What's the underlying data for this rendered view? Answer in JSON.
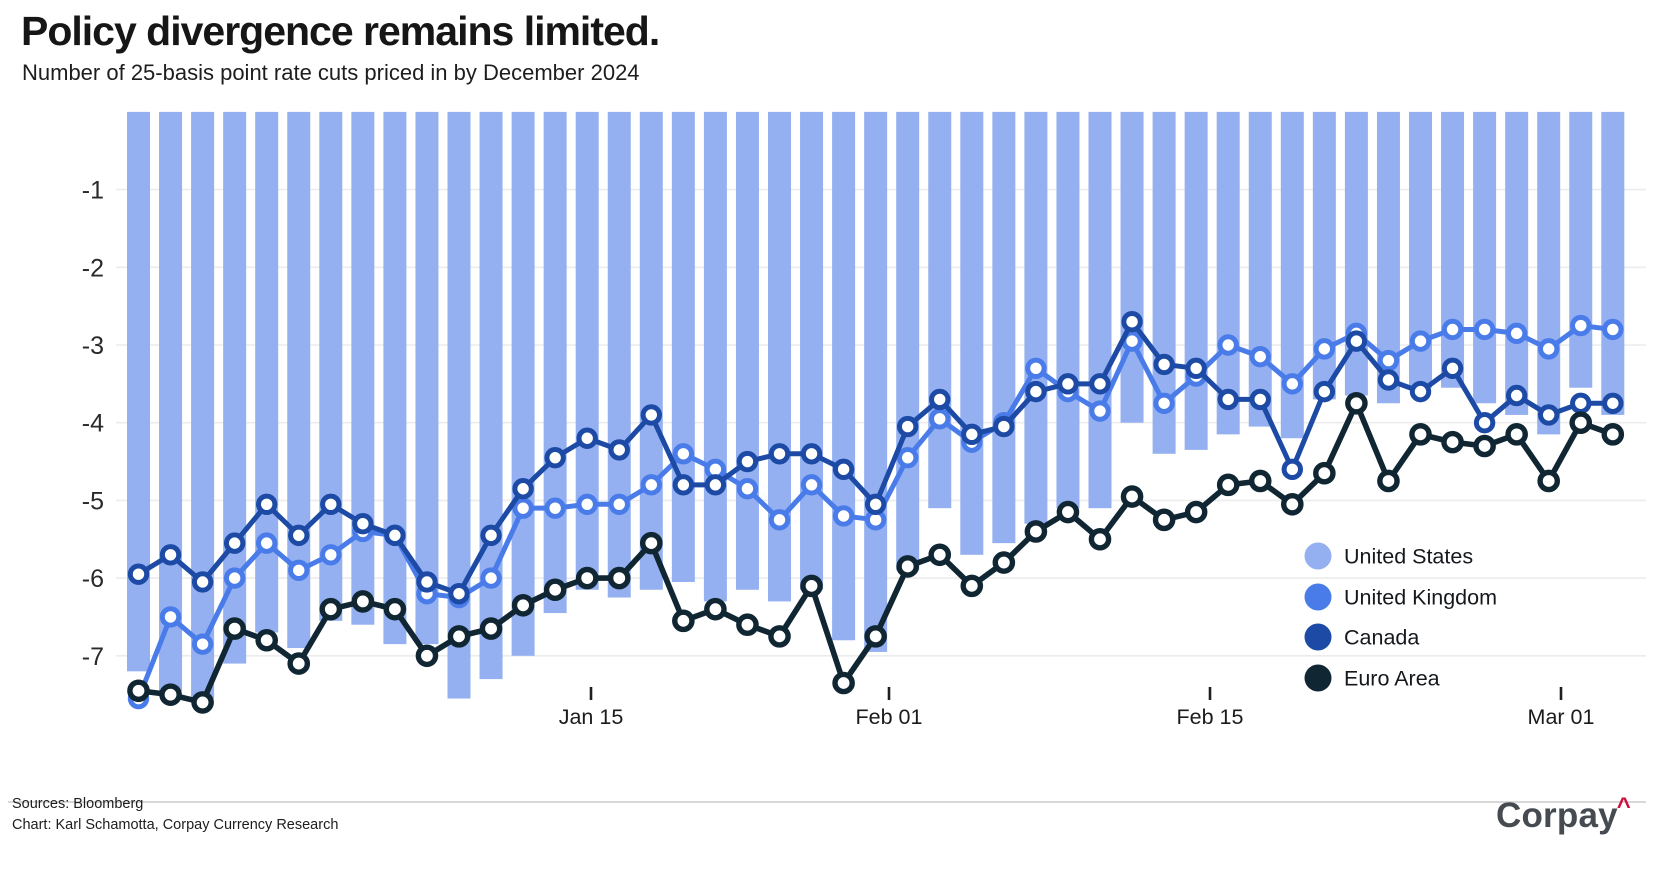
{
  "title": "Policy divergence remains limited.",
  "subtitle": "Number of 25-basis point rate cuts priced in by December 2024",
  "footer": {
    "sources": "Sources: Bloomberg",
    "credit": "Chart: Karl Schamotta, Corpay Currency Research"
  },
  "logo": {
    "text": "Corpay",
    "caret": "^",
    "text_color": "#454b51",
    "caret_color": "#cc0f3c"
  },
  "chart_data": {
    "type": "bar+line",
    "title": "Policy divergence remains limited.",
    "subtitle": "Number of 25-basis point rate cuts priced in by December 2024",
    "ylabel": "Number of 25-basis point rate cuts priced in by December 2024",
    "ylim": [
      -8,
      0
    ],
    "grid": true,
    "grid_color": "#ececec",
    "legend_position": "inside-right",
    "y_tick_labels": [
      "-1",
      "-2",
      "-3",
      "-4",
      "-5",
      "-6",
      "-7"
    ],
    "x_tick_labels": [
      "Jan 15",
      "Feb 01",
      "Feb 15",
      "Mar 01"
    ],
    "series": [
      {
        "name": "United States",
        "type": "bar",
        "color": "#94b0f1",
        "values": [
          -7.2,
          -7.45,
          -7.55,
          -7.1,
          -6.7,
          -6.9,
          -6.55,
          -6.6,
          -6.85,
          -6.85,
          -7.55,
          -7.3,
          -7.0,
          -6.45,
          -6.15,
          -6.25,
          -6.15,
          -6.05,
          -6.3,
          -6.15,
          -6.3,
          -6.15,
          -6.8,
          -6.95,
          -5.9,
          -5.1,
          -5.7,
          -5.55,
          -5.3,
          -5.1,
          -5.1,
          -4.0,
          -4.4,
          -4.35,
          -4.15,
          -4.05,
          -4.2,
          -3.7,
          -3.65,
          -3.75,
          -3.55,
          -3.55,
          -3.75,
          -3.9,
          -4.15,
          -3.55,
          -3.9
        ]
      },
      {
        "name": "United Kingdom",
        "type": "line",
        "color": "#4a7ce9",
        "values": [
          -7.55,
          -6.5,
          -6.85,
          -6.0,
          -5.55,
          -5.9,
          -5.7,
          -5.4,
          -5.45,
          -6.2,
          -6.25,
          -6.0,
          -5.1,
          -5.1,
          -5.05,
          -5.05,
          -4.8,
          -4.4,
          -4.6,
          -4.85,
          -5.25,
          -4.8,
          -5.2,
          -5.25,
          -4.45,
          -3.95,
          -4.25,
          -4.0,
          -3.3,
          -3.6,
          -3.85,
          -2.95,
          -3.75,
          -3.4,
          -3.0,
          -3.15,
          -3.5,
          -3.05,
          -2.85,
          -3.2,
          -2.95,
          -2.8,
          -2.8,
          -2.85,
          -3.05,
          -2.75,
          -2.8
        ]
      },
      {
        "name": "Canada",
        "type": "line",
        "color": "#1c4aa5",
        "values": [
          -5.95,
          -5.7,
          -6.05,
          -5.55,
          -5.05,
          -5.45,
          -5.05,
          -5.3,
          -5.45,
          -6.05,
          -6.2,
          -5.45,
          -4.85,
          -4.45,
          -4.2,
          -4.35,
          -3.9,
          -4.8,
          -4.8,
          -4.5,
          -4.4,
          -4.4,
          -4.6,
          -5.05,
          -4.05,
          -3.7,
          -4.15,
          -4.05,
          -3.6,
          -3.5,
          -3.5,
          -2.7,
          -3.25,
          -3.3,
          -3.7,
          -3.7,
          -4.6,
          -3.6,
          -2.95,
          -3.45,
          -3.6,
          -3.3,
          -4.0,
          -3.65,
          -3.9,
          -3.75,
          -3.75
        ]
      },
      {
        "name": "Euro Area",
        "type": "line",
        "color": "#102633",
        "values": [
          -7.45,
          -7.5,
          -7.6,
          -6.65,
          -6.8,
          -7.1,
          -6.4,
          -6.3,
          -6.4,
          -7.0,
          -6.75,
          -6.65,
          -6.35,
          -6.15,
          -6.0,
          -6.0,
          -5.55,
          -6.55,
          -6.4,
          -6.6,
          -6.75,
          -6.1,
          -7.35,
          -6.75,
          -5.85,
          -5.7,
          -6.1,
          -5.8,
          -5.4,
          -5.15,
          -5.5,
          -4.95,
          -5.25,
          -5.15,
          -4.8,
          -4.75,
          -5.05,
          -4.65,
          -3.75,
          -4.75,
          -4.15,
          -4.25,
          -4.3,
          -4.15,
          -4.75,
          -4.0,
          -4.15
        ]
      }
    ]
  }
}
